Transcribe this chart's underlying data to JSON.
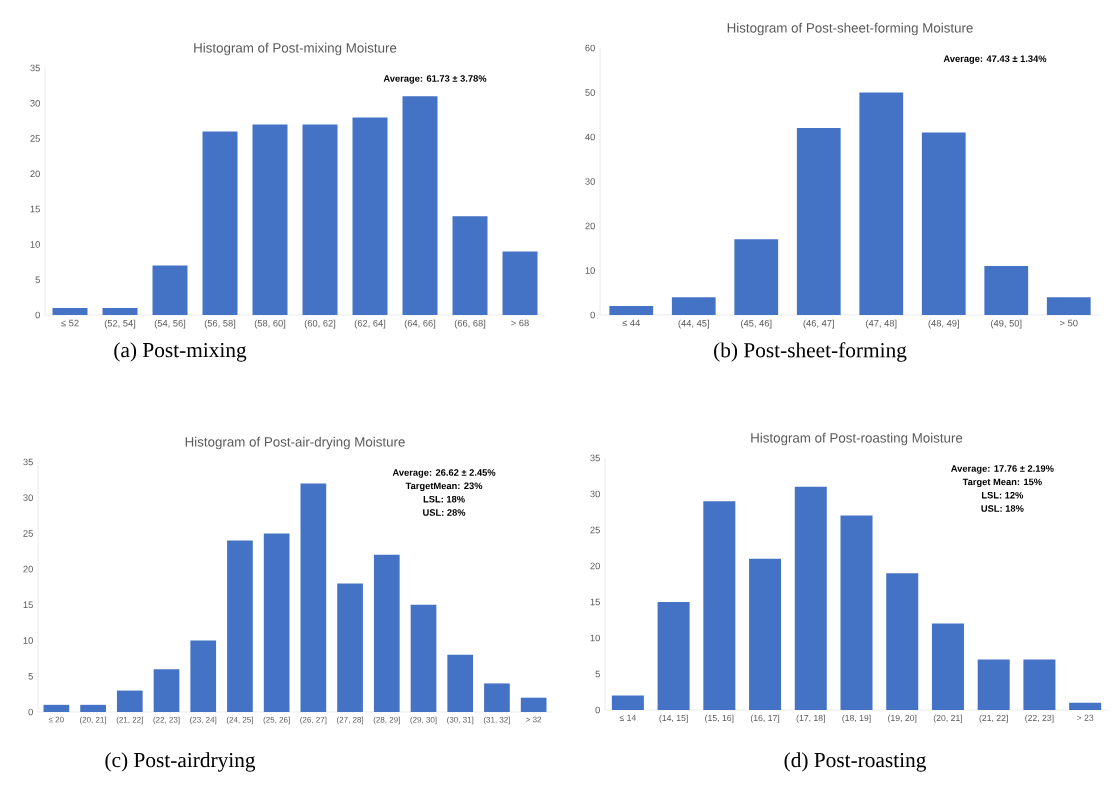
{
  "chart_data": [
    {
      "type": "bar",
      "title": "Histogram of Post-mixing Moisture",
      "categories": [
        "≤ 52",
        "(52, 54]",
        "(54, 56]",
        "(56, 58]",
        "(58, 60]",
        "(60, 62]",
        "(62, 64]",
        "(64, 66]",
        "(66, 68]",
        "> 68"
      ],
      "values": [
        1,
        1,
        7,
        26,
        27,
        27,
        28,
        31,
        14,
        9
      ],
      "color": "#4472c4",
      "ylim": [
        0,
        35
      ],
      "yticks": [
        0,
        5,
        10,
        15,
        20,
        25,
        30,
        35
      ],
      "annotations": [
        "Average: 61.73 ± 3.78%",
        "(a) Post-mixing"
      ]
    },
    {
      "type": "bar",
      "title": "Histogram of Post-sheet-forming  Moisture",
      "categories": [
        "≤ 44",
        "(44, 45]",
        "(45, 46]",
        "(46, 47]",
        "(47, 48]",
        "(48, 49]",
        "(49, 50]",
        "> 50"
      ],
      "values": [
        2,
        4,
        17,
        42,
        50,
        41,
        11,
        4
      ],
      "color": "#4472c4",
      "ylim": [
        0,
        60
      ],
      "yticks": [
        0,
        10,
        20,
        30,
        40,
        50,
        60
      ],
      "annotations": [
        "Average: 47.43 ± 1.34%",
        "(b) Post-sheet-forming"
      ]
    },
    {
      "type": "bar",
      "title": "Histogram of Post-air-drying  Moisture",
      "categories": [
        "≤ 20",
        "(20, 21]",
        "(21, 22]",
        "(22, 23]",
        "(23, 24]",
        "(24, 25]",
        "(25, 26]",
        "(26, 27]",
        "(27, 28]",
        "(28, 29]",
        "(29, 30]",
        "(30, 31]",
        "(31, 32]",
        "> 32"
      ],
      "values": [
        1,
        1,
        3,
        6,
        10,
        24,
        25,
        32,
        18,
        22,
        15,
        8,
        4,
        2
      ],
      "color": "#4472c4",
      "ylim": [
        0,
        35
      ],
      "yticks": [
        0,
        5,
        10,
        15,
        20,
        25,
        30,
        35
      ],
      "annotations": [
        "Average: 26.62 ± 2.45%",
        "TargetMean: 23%",
        "LSL: 18%",
        "USL: 28%",
        "(c) Post-airdrying"
      ]
    },
    {
      "type": "bar",
      "title": "Histogram of Post-roasting  Moisture",
      "categories": [
        "≤ 14",
        "(14, 15]",
        "(15, 16]",
        "(16, 17]",
        "(17, 18]",
        "(18, 19]",
        "(19, 20]",
        "(20, 21]",
        "(21, 22]",
        "(22, 23]",
        "> 23"
      ],
      "values": [
        2,
        15,
        29,
        21,
        31,
        27,
        19,
        12,
        7,
        7,
        1
      ],
      "color": "#4472c4",
      "ylim": [
        0,
        35
      ],
      "yticks": [
        0,
        5,
        10,
        15,
        20,
        25,
        30,
        35
      ],
      "annotations": [
        "Average: 17.76 ± 2.19%",
        "Target Mean: 15%",
        "LSL: 12%",
        "USL: 18%",
        "(d) Post-roasting"
      ]
    }
  ]
}
